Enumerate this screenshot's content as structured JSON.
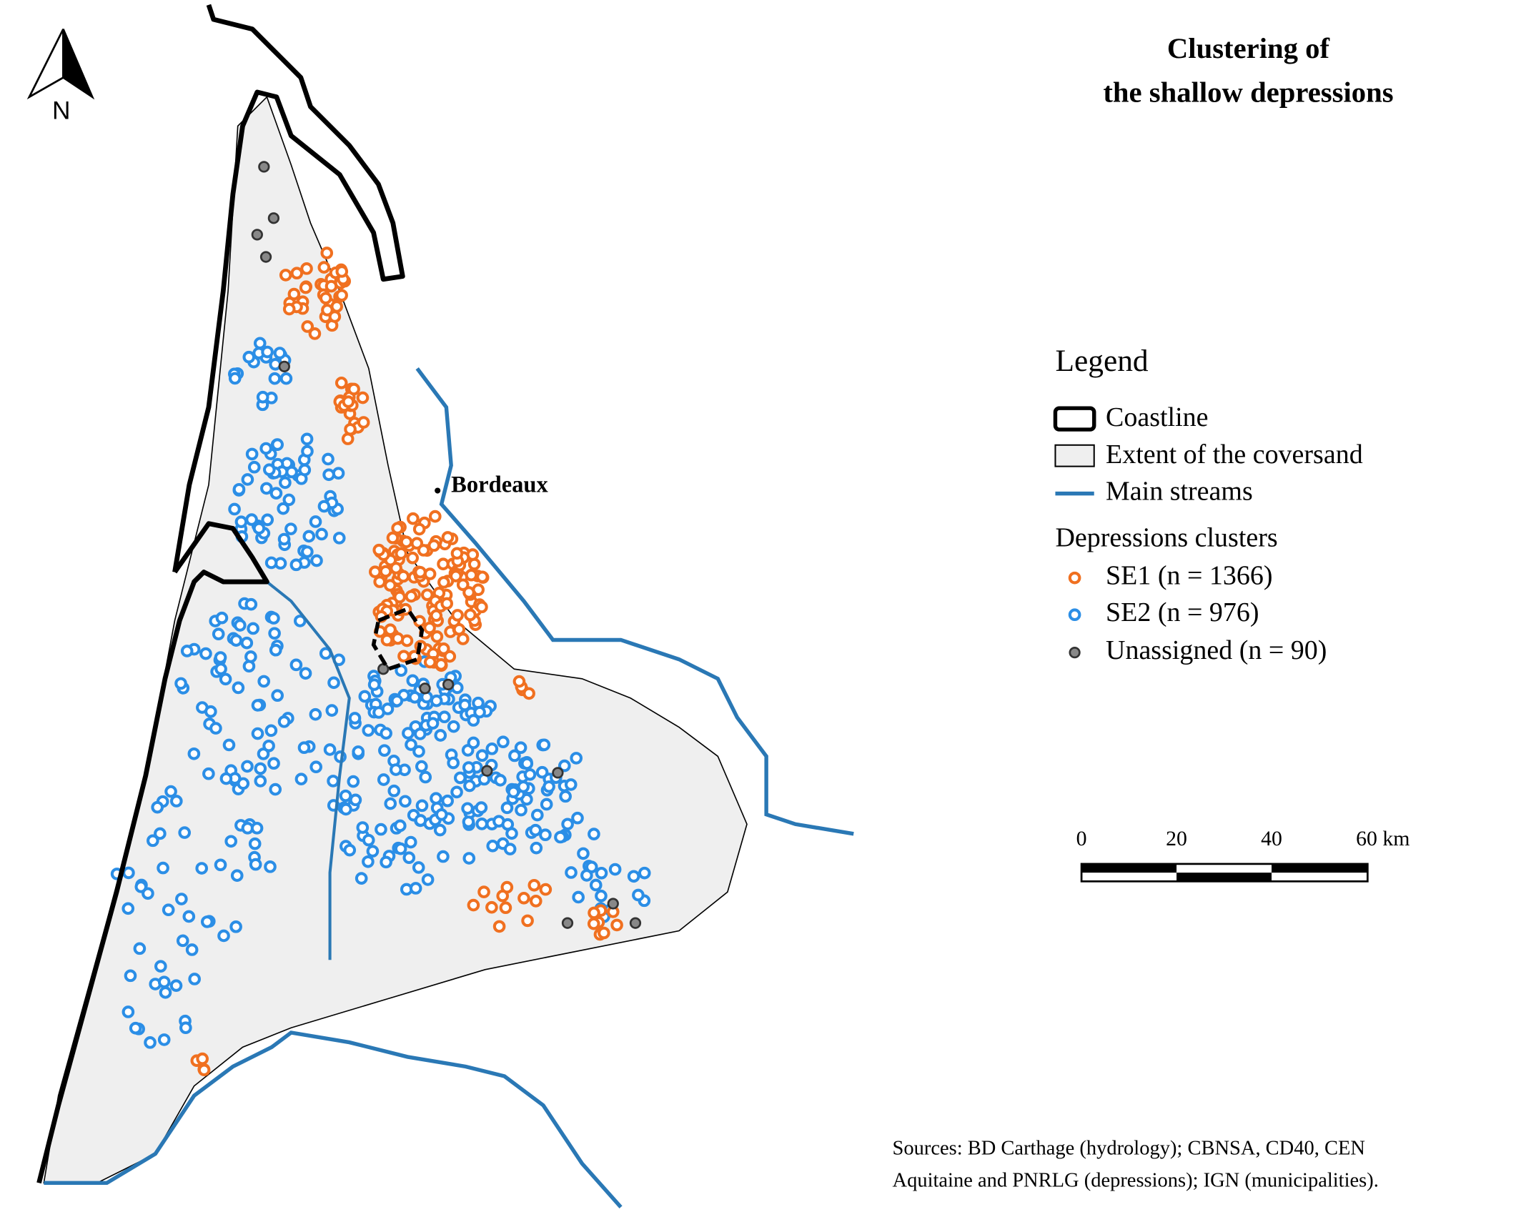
{
  "title": [
    "Clustering of",
    "the shallow depressions"
  ],
  "north_label": "N",
  "city": "Bordeaux",
  "legend": {
    "title": "Legend",
    "items": [
      "Coastline",
      "Extent of the coversand",
      "Main streams"
    ],
    "clusters_title": "Depressions clusters",
    "clusters": [
      "SE1 (n = 1366)",
      "SE2 (n = 976)",
      "Unassigned (n = 90)"
    ]
  },
  "scale_bar": {
    "labels": [
      "0",
      "20",
      "40",
      "60 km"
    ]
  },
  "sources": [
    "Sources:  BD Carthage (hydrology); CBNSA, CD40, CEN",
    "Aquitaine and PNRLG (depressions); IGN (municipalities)."
  ]
}
